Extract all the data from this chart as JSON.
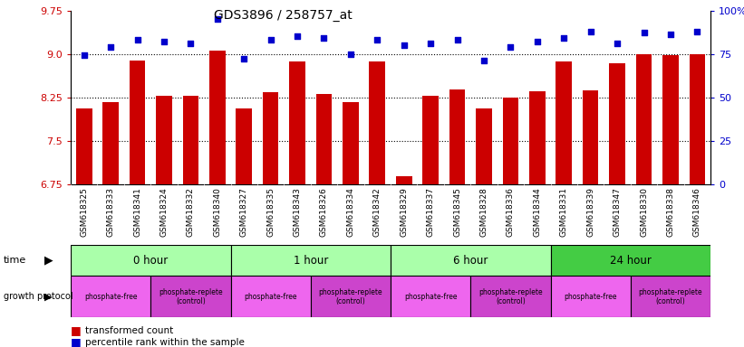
{
  "title": "GDS3896 / 258757_at",
  "samples": [
    "GSM618325",
    "GSM618333",
    "GSM618341",
    "GSM618324",
    "GSM618332",
    "GSM618340",
    "GSM618327",
    "GSM618335",
    "GSM618343",
    "GSM618326",
    "GSM618334",
    "GSM618342",
    "GSM618329",
    "GSM618337",
    "GSM618345",
    "GSM618328",
    "GSM618336",
    "GSM618344",
    "GSM618331",
    "GSM618339",
    "GSM618347",
    "GSM618330",
    "GSM618338",
    "GSM618346"
  ],
  "bar_values": [
    8.05,
    8.17,
    8.88,
    8.27,
    8.27,
    9.05,
    8.06,
    8.33,
    8.86,
    8.3,
    8.17,
    8.86,
    6.88,
    8.28,
    8.38,
    8.05,
    8.25,
    8.35,
    8.86,
    8.37,
    8.84,
    9.0,
    8.97,
    9.0
  ],
  "dot_values": [
    74,
    79,
    83,
    82,
    81,
    95,
    72,
    83,
    85,
    84,
    75,
    83,
    80,
    81,
    83,
    71,
    79,
    82,
    84,
    88,
    81,
    87,
    86,
    88
  ],
  "ymin": 6.75,
  "ymax": 9.75,
  "yticks_left": [
    6.75,
    7.5,
    8.25,
    9.0,
    9.75
  ],
  "yticks_right": [
    0,
    25,
    50,
    75,
    100
  ],
  "bar_color": "#cc0000",
  "dot_color": "#0000cc",
  "bar_bottom": 6.75,
  "time_groups": [
    {
      "label": "0 hour",
      "start": 0,
      "end": 6
    },
    {
      "label": "1 hour",
      "start": 6,
      "end": 12
    },
    {
      "label": "6 hour",
      "start": 12,
      "end": 18
    },
    {
      "label": "24 hour",
      "start": 18,
      "end": 24
    }
  ],
  "growth_groups": [
    {
      "label": "phosphate-free",
      "start": 0,
      "end": 3,
      "type": "free"
    },
    {
      "label": "phosphate-replete\n(control)",
      "start": 3,
      "end": 6,
      "type": "replete"
    },
    {
      "label": "phosphate-free",
      "start": 6,
      "end": 9,
      "type": "free"
    },
    {
      "label": "phosphate-replete\n(control)",
      "start": 9,
      "end": 12,
      "type": "replete"
    },
    {
      "label": "phosphate-free",
      "start": 12,
      "end": 15,
      "type": "free"
    },
    {
      "label": "phosphate-replete\n(control)",
      "start": 15,
      "end": 18,
      "type": "replete"
    },
    {
      "label": "phosphate-free",
      "start": 18,
      "end": 21,
      "type": "free"
    },
    {
      "label": "phosphate-replete\n(control)",
      "start": 21,
      "end": 24,
      "type": "replete"
    }
  ],
  "time_color_light": "#aaffaa",
  "time_color_24h": "#44cc44",
  "growth_free_color": "#ee66ee",
  "growth_replete_color": "#cc44cc",
  "tick_color_left": "#cc0000",
  "tick_color_right": "#0000cc",
  "xtick_bg_color": "#cccccc"
}
